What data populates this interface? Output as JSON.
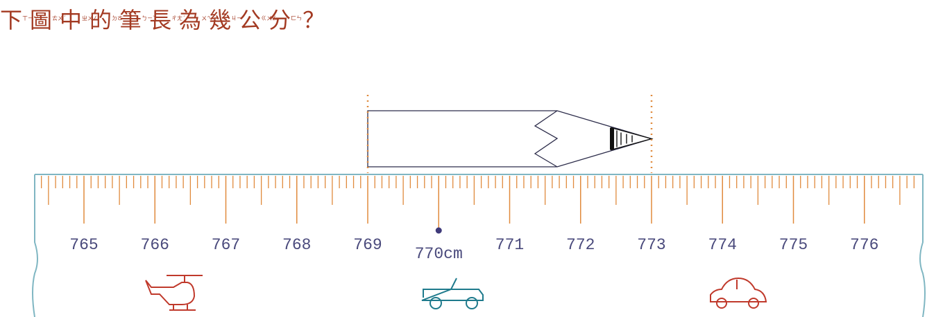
{
  "question": {
    "chars": [
      {
        "char": "下",
        "zhuyin": "ㄒㄧㄚˋ"
      },
      {
        "char": "圖",
        "zhuyin": "ㄊㄨˊ"
      },
      {
        "char": "中",
        "zhuyin": "ㄓㄨㄥ"
      },
      {
        "char": "的",
        "zhuyin": "ㄉㄜ˙"
      },
      {
        "char": "筆",
        "zhuyin": "ㄅㄧˇ"
      },
      {
        "char": "長",
        "zhuyin": "ㄔㄤˊ"
      },
      {
        "char": "為",
        "zhuyin": "ㄨㄟˊ"
      },
      {
        "char": "幾",
        "zhuyin": "ㄐㄧˇ"
      },
      {
        "char": "公",
        "zhuyin": "ㄍㄨㄥ"
      },
      {
        "char": "分",
        "zhuyin": "ㄈㄣ"
      }
    ],
    "mark": "？"
  },
  "ruler": {
    "ticks": [
      {
        "value": 765,
        "label": "765"
      },
      {
        "value": 766,
        "label": "766"
      },
      {
        "value": 767,
        "label": "767"
      },
      {
        "value": 768,
        "label": "768"
      },
      {
        "value": 769,
        "label": "769"
      },
      {
        "value": 770,
        "label": "770cm"
      },
      {
        "value": 771,
        "label": "771"
      },
      {
        "value": 772,
        "label": "772"
      },
      {
        "value": 773,
        "label": "773"
      },
      {
        "value": 774,
        "label": "774"
      },
      {
        "value": 775,
        "label": "775"
      },
      {
        "value": 776,
        "label": "776"
      }
    ],
    "pencil": {
      "start": 769,
      "end": 773
    }
  }
}
